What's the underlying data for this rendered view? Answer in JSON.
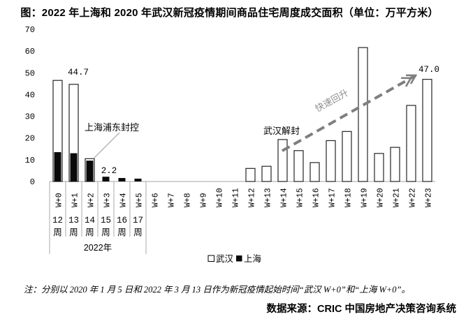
{
  "footnote": "注：分别以 2020 年 1 月 5 日和 2022 年 3 月 13 日作为新冠疫情起始时间“武汉 W+0”和“上海 W+0”。",
  "source": "数据来源：CRIC 中国房地产决策咨询系统",
  "chart_data": {
    "type": "bar",
    "mode": "overlay",
    "title": "图：2022 年上海和 2020 年武汉新冠疫情期间商品住宅周度成交面积（单位：万平方米）",
    "categories": [
      "W+0",
      "W+1",
      "W+2",
      "W+3",
      "W+4",
      "W+5",
      "W+6",
      "W+7",
      "W+8",
      "W+9",
      "W+10",
      "W+11",
      "W+12",
      "W+13",
      "W+14",
      "W+15",
      "W+16",
      "W+17",
      "W+18",
      "W+19",
      "W+20",
      "W+21",
      "W+22",
      "W+23"
    ],
    "series": [
      {
        "name": "武汉",
        "fill": "#ffffff",
        "stroke": "#262626",
        "values": [
          46.5,
          44.7,
          10.5,
          0,
          0,
          0,
          0,
          0,
          0,
          0,
          0,
          0,
          6.0,
          7.0,
          19.3,
          14.2,
          8.7,
          18.8,
          23.0,
          61.6,
          12.9,
          15.7,
          35.0,
          47.0
        ]
      },
      {
        "name": "上海",
        "fill": "#0a0a0a",
        "stroke": "#0a0a0a",
        "values": [
          13.5,
          13.0,
          9.6,
          2.2,
          1.6,
          1.3,
          0,
          0,
          0,
          0,
          0,
          0,
          0,
          0,
          0,
          0,
          0,
          0,
          0,
          0,
          0,
          0,
          0,
          0
        ]
      }
    ],
    "xlabel": "",
    "ylabel": "",
    "ylim": [
      0,
      70
    ],
    "yticks": [
      0,
      10,
      20,
      30,
      40,
      50,
      60,
      70
    ],
    "grid": false,
    "legend_position": "bottom",
    "x_subaxis": {
      "labels": [
        "12周",
        "13周",
        "14周",
        "15周",
        "16周",
        "17周"
      ],
      "group_label": "2022年",
      "span": "W+0–W+5"
    },
    "annotations": [
      {
        "id": "label-44-7",
        "text": "44.7",
        "target": "武汉 W+1"
      },
      {
        "id": "label-2-2",
        "text": "2.2",
        "target": "上海 W+3"
      },
      {
        "id": "label-47-0",
        "text": "47.0",
        "target": "武汉 W+23"
      },
      {
        "id": "shanghai-lockdown",
        "text": "上海浦东封控",
        "target": "上海 W+2"
      },
      {
        "id": "wuhan-reopen",
        "text": "武汉解封",
        "target": "武汉 W+14"
      },
      {
        "id": "rapid-rebound",
        "text": "快速回升",
        "target": "trend-arrow"
      }
    ],
    "trend_arrow": {
      "style": "dashed",
      "color": "#7f7f7f",
      "from": "W+14",
      "to": "W+23"
    }
  }
}
